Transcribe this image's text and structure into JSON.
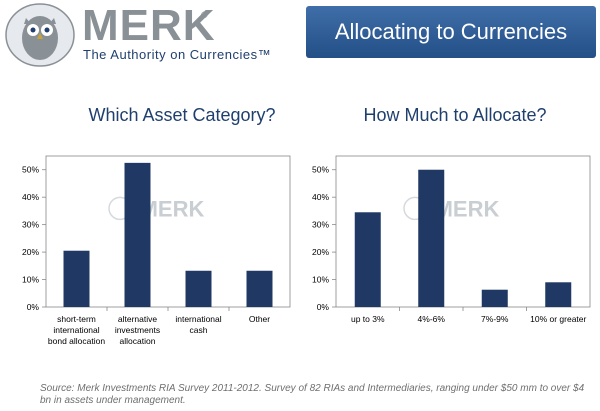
{
  "header": {
    "brand": "MERK",
    "registered": "®",
    "tagline": "The Authority on Currencies™",
    "title": "Allocating to Currencies"
  },
  "watermark": "MERK",
  "colors": {
    "bar": "#1f3864",
    "banner": "#2e5b93",
    "title_text": "#1f3f6e"
  },
  "chart_data": [
    {
      "type": "bar",
      "title": "Which Asset Category?",
      "categories": [
        [
          "short-term",
          "international",
          "bond allocation"
        ],
        [
          "alternative",
          "investments",
          "allocation"
        ],
        [
          "international",
          "cash"
        ],
        [
          "Other"
        ]
      ],
      "values": [
        20.5,
        52.5,
        13.2,
        13.2
      ],
      "ylim": [
        0,
        55
      ],
      "yticks": [
        "0%",
        "10%",
        "20%",
        "30%",
        "40%",
        "50%"
      ],
      "xlabel": "",
      "ylabel": ""
    },
    {
      "type": "bar",
      "title": "How Much to Allocate?",
      "categories": [
        [
          "up to 3%"
        ],
        [
          "4%-6%"
        ],
        [
          "7%-9%"
        ],
        [
          "10% or greater"
        ]
      ],
      "values": [
        34.5,
        50,
        6.3,
        9
      ],
      "ylim": [
        0,
        55
      ],
      "yticks": [
        "0%",
        "10%",
        "20%",
        "30%",
        "40%",
        "50%"
      ],
      "xlabel": "",
      "ylabel": ""
    }
  ],
  "footer": {
    "source": "Source: Merk Investments RIA Survey 2011-2012. Survey of 82 RIAs and Intermediaries, ranging under $50 mm to over $4 bn in assets under management."
  }
}
